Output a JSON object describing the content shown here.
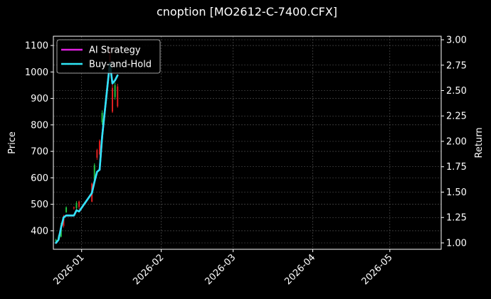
{
  "chart_data": {
    "type": "line",
    "title": "cnoption [MO2612-C-7400.CFX]",
    "ylabel": "Price",
    "y2label": "Return",
    "xlim": [
      "2025-12-21",
      "2026-05-21"
    ],
    "ylim": [
      330,
      1135
    ],
    "y2lim": [
      0.937,
      3.035
    ],
    "x_ticks": [
      "2026-01",
      "2026-02",
      "2026-03",
      "2026-04",
      "2026-05"
    ],
    "y_ticks": [
      400,
      500,
      600,
      700,
      800,
      900,
      1000,
      1100
    ],
    "y2_ticks": [
      "1.00",
      "1.25",
      "1.50",
      "1.75",
      "2.00",
      "2.25",
      "2.50",
      "2.75",
      "3.00"
    ],
    "grid": true,
    "legend_position": "top-left",
    "series": [
      {
        "name": "AI Strategy",
        "color": "#e020e0",
        "x": [
          "2025-12-22",
          "2025-12-23",
          "2025-12-24",
          "2025-12-25",
          "2025-12-26",
          "2025-12-29",
          "2025-12-30",
          "2025-12-31",
          "2026-01-05",
          "2026-01-06",
          "2026-01-07",
          "2026-01-08",
          "2026-01-09",
          "2026-01-12",
          "2026-01-13",
          "2026-01-14",
          "2026-01-15"
        ],
        "values": [
          1.0,
          1.03,
          1.15,
          1.25,
          1.27,
          1.27,
          1.32,
          1.31,
          1.49,
          1.6,
          1.7,
          1.72,
          2.05,
          2.77,
          2.57,
          2.6,
          2.65
        ]
      },
      {
        "name": "Buy-and-Hold",
        "color": "#2ee6f6",
        "x": [
          "2025-12-22",
          "2025-12-23",
          "2025-12-24",
          "2025-12-25",
          "2025-12-26",
          "2025-12-29",
          "2025-12-30",
          "2025-12-31",
          "2026-01-05",
          "2026-01-06",
          "2026-01-07",
          "2026-01-08",
          "2026-01-09",
          "2026-01-12",
          "2026-01-13",
          "2026-01-14",
          "2026-01-15"
        ],
        "values": [
          1.0,
          1.03,
          1.15,
          1.25,
          1.27,
          1.27,
          1.32,
          1.31,
          1.49,
          1.6,
          1.7,
          1.72,
          2.05,
          2.77,
          2.57,
          2.6,
          2.65
        ]
      }
    ],
    "candles": [
      {
        "x": "2025-12-22",
        "open": 360,
        "close": 366,
        "high": 370,
        "low": 358
      },
      {
        "x": "2025-12-23",
        "open": 366,
        "close": 378,
        "high": 385,
        "low": 362
      },
      {
        "x": "2025-12-24",
        "open": 378,
        "close": 420,
        "high": 430,
        "low": 375
      },
      {
        "x": "2025-12-25",
        "open": 455,
        "close": 418,
        "high": 460,
        "low": 412
      },
      {
        "x": "2025-12-26",
        "open": 470,
        "close": 488,
        "high": 492,
        "low": 468
      },
      {
        "x": "2025-12-29",
        "open": 488,
        "close": 485,
        "high": 492,
        "low": 480
      },
      {
        "x": "2025-12-30",
        "open": 485,
        "close": 505,
        "high": 512,
        "low": 478
      },
      {
        "x": "2025-12-31",
        "open": 510,
        "close": 490,
        "high": 514,
        "low": 482
      },
      {
        "x": "2026-01-05",
        "open": 578,
        "close": 510,
        "high": 582,
        "low": 508
      },
      {
        "x": "2026-01-06",
        "open": 592,
        "close": 648,
        "high": 655,
        "low": 590
      },
      {
        "x": "2026-01-07",
        "open": 705,
        "close": 676,
        "high": 710,
        "low": 668
      },
      {
        "x": "2026-01-08",
        "open": 740,
        "close": 690,
        "high": 745,
        "low": 686
      },
      {
        "x": "2026-01-09",
        "open": 810,
        "close": 845,
        "high": 855,
        "low": 800
      },
      {
        "x": "2026-01-12",
        "open": 1080,
        "close": 1010,
        "high": 1090,
        "low": 1002
      },
      {
        "x": "2026-01-13",
        "open": 940,
        "close": 850,
        "high": 960,
        "low": 845
      },
      {
        "x": "2026-01-14",
        "open": 905,
        "close": 950,
        "high": 960,
        "low": 895
      },
      {
        "x": "2026-01-15",
        "open": 945,
        "close": 870,
        "high": 955,
        "low": 865
      }
    ],
    "candle_colors": {
      "up": "#20c040",
      "down": "#e02020"
    }
  }
}
